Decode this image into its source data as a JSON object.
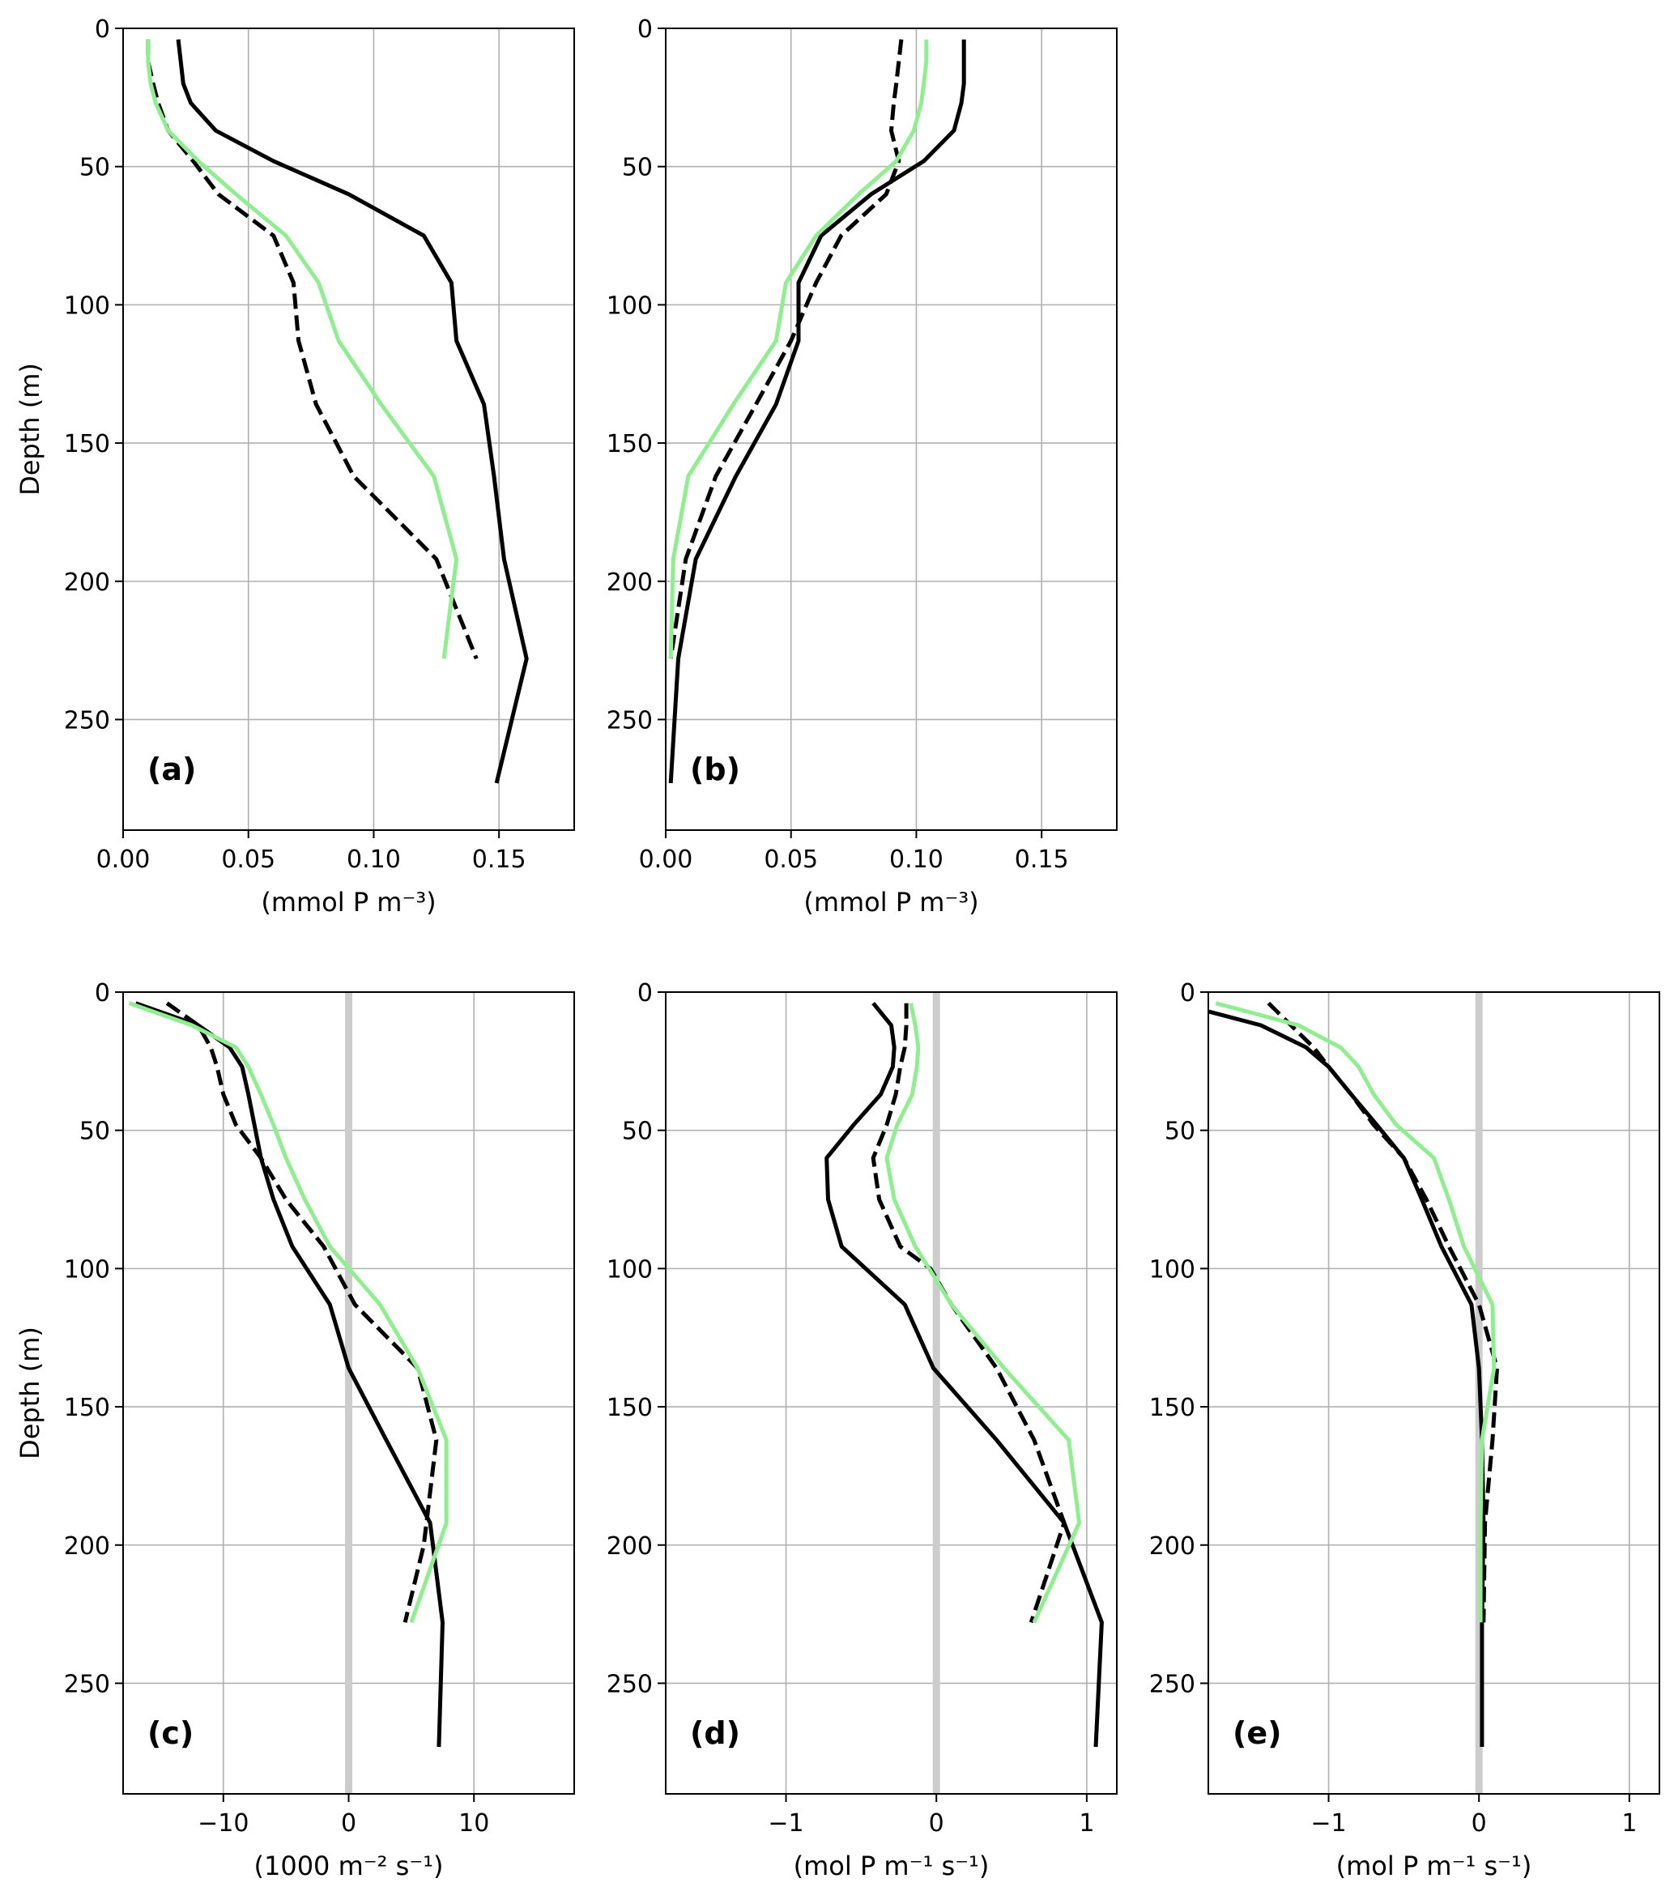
{
  "figure": {
    "colors": {
      "solid": "#000000",
      "dashed": "#000000",
      "green": "#90ee90",
      "zero_line": "#cccccc",
      "grid": "#b0b0b0"
    }
  },
  "chart_data": [
    {
      "type": "line",
      "panel_label": "(a)",
      "xlabel": "(mmol P m⁻³)",
      "ylabel": "Depth (m)",
      "xlim": [
        0,
        0.18
      ],
      "ylim": [
        290,
        0
      ],
      "xticks": [
        0,
        0.05,
        0.1,
        0.15
      ],
      "xtick_labels": [
        "0.00",
        "0.05",
        "0.10",
        "0.15"
      ],
      "yticks": [
        0,
        50,
        100,
        150,
        200,
        250
      ],
      "ytick_labels": [
        "0",
        "50",
        "100",
        "150",
        "200",
        "250"
      ],
      "grid": true,
      "zero_line": false,
      "series": [
        {
          "style": "solid",
          "color": "#000000",
          "points": [
            [
              0.022,
              4
            ],
            [
              0.023,
              12
            ],
            [
              0.024,
              20
            ],
            [
              0.027,
              27
            ],
            [
              0.037,
              37
            ],
            [
              0.06,
              48
            ],
            [
              0.09,
              60
            ],
            [
              0.12,
              75
            ],
            [
              0.131,
              92
            ],
            [
              0.133,
              113
            ],
            [
              0.144,
              136
            ],
            [
              0.148,
              162
            ],
            [
              0.152,
              192
            ],
            [
              0.161,
              228
            ],
            [
              0.149,
              273
            ]
          ]
        },
        {
          "style": "dashed",
          "color": "#000000",
          "points": [
            [
              0.01,
              4
            ],
            [
              0.01,
              12
            ],
            [
              0.012,
              20
            ],
            [
              0.014,
              27
            ],
            [
              0.018,
              37
            ],
            [
              0.028,
              48
            ],
            [
              0.038,
              60
            ],
            [
              0.06,
              75
            ],
            [
              0.068,
              92
            ],
            [
              0.07,
              113
            ],
            [
              0.077,
              136
            ],
            [
              0.092,
              162
            ],
            [
              0.125,
              192
            ],
            [
              0.141,
              228
            ]
          ]
        },
        {
          "style": "solid",
          "color": "#90ee90",
          "points": [
            [
              0.01,
              4
            ],
            [
              0.01,
              12
            ],
            [
              0.011,
              20
            ],
            [
              0.013,
              27
            ],
            [
              0.018,
              37
            ],
            [
              0.03,
              48
            ],
            [
              0.045,
              60
            ],
            [
              0.065,
              75
            ],
            [
              0.078,
              92
            ],
            [
              0.086,
              113
            ],
            [
              0.103,
              136
            ],
            [
              0.124,
              162
            ],
            [
              0.133,
              192
            ],
            [
              0.128,
              228
            ]
          ]
        }
      ]
    },
    {
      "type": "line",
      "panel_label": "(b)",
      "xlabel": "(mmol P m⁻³)",
      "ylabel": "",
      "xlim": [
        0,
        0.18
      ],
      "ylim": [
        290,
        0
      ],
      "xticks": [
        0,
        0.05,
        0.1,
        0.15
      ],
      "xtick_labels": [
        "0.00",
        "0.05",
        "0.10",
        "0.15"
      ],
      "yticks": [
        0,
        50,
        100,
        150,
        200,
        250
      ],
      "ytick_labels": [
        "0",
        "50",
        "100",
        "150",
        "200",
        "250"
      ],
      "grid": true,
      "zero_line": false,
      "series": [
        {
          "style": "solid",
          "color": "#000000",
          "points": [
            [
              0.119,
              4
            ],
            [
              0.119,
              12
            ],
            [
              0.119,
              20
            ],
            [
              0.118,
              27
            ],
            [
              0.115,
              37
            ],
            [
              0.103,
              48
            ],
            [
              0.082,
              60
            ],
            [
              0.062,
              75
            ],
            [
              0.053,
              92
            ],
            [
              0.053,
              113
            ],
            [
              0.044,
              136
            ],
            [
              0.028,
              162
            ],
            [
              0.012,
              192
            ],
            [
              0.005,
              228
            ],
            [
              0.002,
              273
            ]
          ]
        },
        {
          "style": "dashed",
          "color": "#000000",
          "points": [
            [
              0.094,
              4
            ],
            [
              0.093,
              12
            ],
            [
              0.092,
              20
            ],
            [
              0.091,
              27
            ],
            [
              0.09,
              37
            ],
            [
              0.093,
              48
            ],
            [
              0.088,
              60
            ],
            [
              0.07,
              75
            ],
            [
              0.06,
              92
            ],
            [
              0.05,
              113
            ],
            [
              0.036,
              136
            ],
            [
              0.02,
              162
            ],
            [
              0.008,
              192
            ],
            [
              0.002,
              228
            ]
          ]
        },
        {
          "style": "solid",
          "color": "#90ee90",
          "points": [
            [
              0.104,
              4
            ],
            [
              0.104,
              12
            ],
            [
              0.103,
              20
            ],
            [
              0.102,
              27
            ],
            [
              0.099,
              37
            ],
            [
              0.092,
              48
            ],
            [
              0.077,
              60
            ],
            [
              0.06,
              75
            ],
            [
              0.048,
              92
            ],
            [
              0.044,
              113
            ],
            [
              0.027,
              136
            ],
            [
              0.009,
              162
            ],
            [
              0.003,
              192
            ],
            [
              0.002,
              228
            ]
          ]
        }
      ]
    },
    {
      "type": "line",
      "panel_label": "(c)",
      "xlabel": "(1000 m⁻² s⁻¹)",
      "ylabel": "Depth (m)",
      "xlim": [
        -18,
        18
      ],
      "ylim": [
        290,
        0
      ],
      "xticks": [
        -10,
        0,
        10
      ],
      "xtick_labels": [
        "−10",
        "0",
        "10"
      ],
      "yticks": [
        0,
        50,
        100,
        150,
        200,
        250
      ],
      "ytick_labels": [
        "0",
        "50",
        "100",
        "150",
        "200",
        "250"
      ],
      "grid": true,
      "zero_line": true,
      "series": [
        {
          "style": "solid",
          "color": "#000000",
          "points": [
            [
              -17.0,
              4
            ],
            [
              -12.0,
              12
            ],
            [
              -9.5,
              20
            ],
            [
              -8.5,
              27
            ],
            [
              -8.0,
              37
            ],
            [
              -7.0,
              60
            ],
            [
              -6.0,
              75
            ],
            [
              -4.5,
              92
            ],
            [
              -1.5,
              113
            ],
            [
              0,
              136
            ],
            [
              3.0,
              162
            ],
            [
              6.5,
              192
            ],
            [
              7.5,
              228
            ],
            [
              7.2,
              273
            ]
          ]
        },
        {
          "style": "dashed",
          "color": "#000000",
          "points": [
            [
              -14.5,
              4
            ],
            [
              -12.0,
              12
            ],
            [
              -11.0,
              20
            ],
            [
              -10.5,
              27
            ],
            [
              -10.0,
              37
            ],
            [
              -9.0,
              48
            ],
            [
              -7.0,
              60
            ],
            [
              -5.0,
              75
            ],
            [
              -2.0,
              92
            ],
            [
              0.5,
              113
            ],
            [
              5.5,
              136
            ],
            [
              7.0,
              162
            ],
            [
              6.0,
              200
            ],
            [
              4.5,
              228
            ]
          ]
        },
        {
          "style": "solid",
          "color": "#90ee90",
          "points": [
            [
              -17.5,
              4
            ],
            [
              -12.5,
              12
            ],
            [
              -9.0,
              20
            ],
            [
              -8.0,
              27
            ],
            [
              -7.0,
              37
            ],
            [
              -6.0,
              48
            ],
            [
              -5.0,
              60
            ],
            [
              -3.5,
              75
            ],
            [
              -1.5,
              92
            ],
            [
              2.5,
              113
            ],
            [
              5.5,
              136
            ],
            [
              7.8,
              162
            ],
            [
              7.8,
              192
            ],
            [
              5.0,
              228
            ]
          ]
        }
      ]
    },
    {
      "type": "line",
      "panel_label": "(d)",
      "xlabel": "(mol P m⁻¹ s⁻¹)",
      "ylabel": "",
      "xlim": [
        -1.8,
        1.2
      ],
      "ylim": [
        290,
        0
      ],
      "xticks": [
        -1,
        0,
        1
      ],
      "xtick_labels": [
        "−1",
        "0",
        "1"
      ],
      "yticks": [
        0,
        50,
        100,
        150,
        200,
        250
      ],
      "ytick_labels": [
        "0",
        "50",
        "100",
        "150",
        "200",
        "250"
      ],
      "grid": true,
      "zero_line": true,
      "series": [
        {
          "style": "solid",
          "color": "#000000",
          "points": [
            [
              -0.42,
              4
            ],
            [
              -0.3,
              12
            ],
            [
              -0.28,
              20
            ],
            [
              -0.29,
              27
            ],
            [
              -0.37,
              37
            ],
            [
              -0.55,
              48
            ],
            [
              -0.73,
              60
            ],
            [
              -0.72,
              75
            ],
            [
              -0.63,
              92
            ],
            [
              -0.21,
              113
            ],
            [
              -0.02,
              136
            ],
            [
              0.4,
              162
            ],
            [
              0.85,
              192
            ],
            [
              1.1,
              228
            ],
            [
              1.06,
              273
            ]
          ]
        },
        {
          "style": "dashed",
          "color": "#000000",
          "points": [
            [
              -0.2,
              4
            ],
            [
              -0.2,
              12
            ],
            [
              -0.21,
              20
            ],
            [
              -0.24,
              27
            ],
            [
              -0.27,
              37
            ],
            [
              -0.33,
              48
            ],
            [
              -0.42,
              60
            ],
            [
              -0.38,
              75
            ],
            [
              -0.24,
              92
            ],
            [
              -0.04,
              100
            ],
            [
              0.1,
              113
            ],
            [
              0.4,
              136
            ],
            [
              0.65,
              162
            ],
            [
              0.85,
              192
            ],
            [
              0.63,
              228
            ]
          ]
        },
        {
          "style": "solid",
          "color": "#90ee90",
          "points": [
            [
              -0.17,
              4
            ],
            [
              -0.14,
              12
            ],
            [
              -0.12,
              20
            ],
            [
              -0.13,
              27
            ],
            [
              -0.16,
              37
            ],
            [
              -0.26,
              48
            ],
            [
              -0.33,
              60
            ],
            [
              -0.28,
              75
            ],
            [
              -0.14,
              92
            ],
            [
              0.1,
              113
            ],
            [
              0.45,
              136
            ],
            [
              0.88,
              162
            ],
            [
              0.95,
              192
            ],
            [
              0.65,
              228
            ]
          ]
        }
      ]
    },
    {
      "type": "line",
      "panel_label": "(e)",
      "xlabel": "(mol P m⁻¹ s⁻¹)",
      "ylabel": "",
      "xlim": [
        -1.8,
        1.2
      ],
      "ylim": [
        290,
        0
      ],
      "xticks": [
        -1,
        0,
        1
      ],
      "xtick_labels": [
        "−1",
        "0",
        "1"
      ],
      "yticks": [
        0,
        50,
        100,
        150,
        200,
        250
      ],
      "ytick_labels": [
        "0",
        "50",
        "100",
        "150",
        "200",
        "250"
      ],
      "grid": true,
      "zero_line": true,
      "series": [
        {
          "style": "solid",
          "color": "#000000",
          "points": [
            [
              -1.8,
              7
            ],
            [
              -1.45,
              12
            ],
            [
              -1.15,
              20
            ],
            [
              -1.0,
              27
            ],
            [
              -0.85,
              37
            ],
            [
              -0.68,
              48
            ],
            [
              -0.5,
              60
            ],
            [
              -0.38,
              75
            ],
            [
              -0.25,
              92
            ],
            [
              -0.05,
              113
            ],
            [
              0.0,
              136
            ],
            [
              0.02,
              162
            ],
            [
              0.03,
              192
            ],
            [
              0.02,
              228
            ],
            [
              0.02,
              273
            ]
          ]
        },
        {
          "style": "dashed",
          "color": "#000000",
          "points": [
            [
              -1.4,
              4
            ],
            [
              -1.25,
              12
            ],
            [
              -1.1,
              20
            ],
            [
              -1.0,
              27
            ],
            [
              -0.85,
              37
            ],
            [
              -0.7,
              48
            ],
            [
              -0.5,
              60
            ],
            [
              -0.35,
              75
            ],
            [
              -0.2,
              92
            ],
            [
              0.0,
              113
            ],
            [
              0.12,
              136
            ],
            [
              0.09,
              162
            ],
            [
              0.04,
              192
            ],
            [
              0.03,
              228
            ]
          ]
        },
        {
          "style": "solid",
          "color": "#90ee90",
          "points": [
            [
              -1.75,
              4
            ],
            [
              -1.2,
              12
            ],
            [
              -0.92,
              20
            ],
            [
              -0.8,
              27
            ],
            [
              -0.7,
              37
            ],
            [
              -0.55,
              48
            ],
            [
              -0.3,
              60
            ],
            [
              -0.2,
              75
            ],
            [
              -0.1,
              92
            ],
            [
              0.09,
              113
            ],
            [
              0.1,
              136
            ],
            [
              0.02,
              162
            ],
            [
              0.01,
              192
            ],
            [
              0.01,
              228
            ]
          ]
        }
      ]
    }
  ]
}
